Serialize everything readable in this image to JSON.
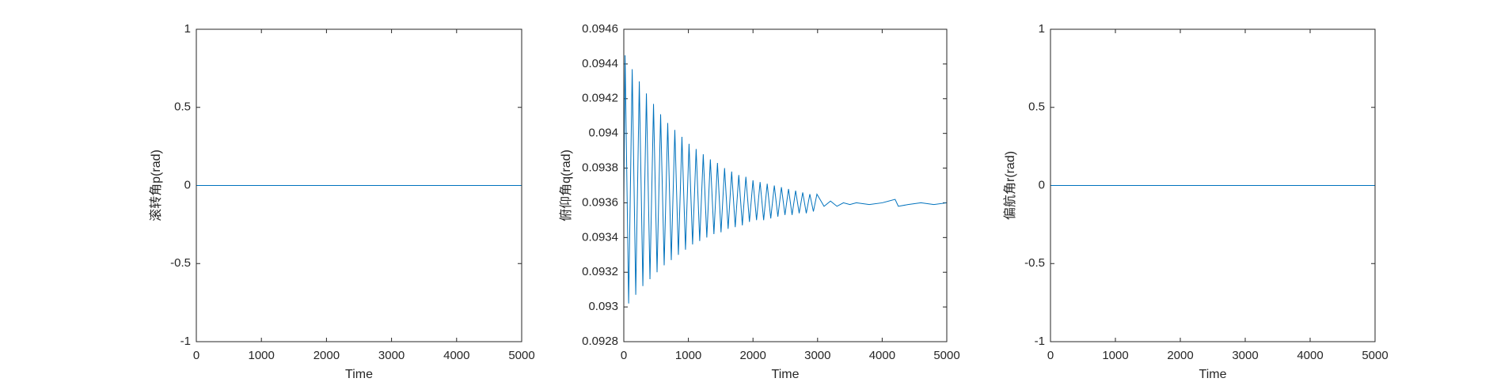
{
  "chart_data": [
    {
      "type": "line",
      "x_label": "Time",
      "y_label": "滚转角p(rad)",
      "x": [
        0,
        5000
      ],
      "values": [
        0,
        0
      ],
      "color": "#0072bd",
      "xlim": [
        0,
        5000
      ],
      "ylim": [
        -1,
        1
      ],
      "xticks": [
        0,
        1000,
        2000,
        3000,
        4000,
        5000
      ],
      "yticks": [
        -1,
        -0.5,
        0,
        0.5,
        1
      ]
    },
    {
      "type": "line",
      "x_label": "Time",
      "y_label": "俯仰角q(rad)",
      "x": [
        0,
        20,
        75,
        130,
        185,
        240,
        295,
        350,
        405,
        460,
        515,
        570,
        625,
        680,
        735,
        790,
        845,
        900,
        955,
        1010,
        1065,
        1120,
        1175,
        1230,
        1285,
        1340,
        1395,
        1450,
        1505,
        1560,
        1615,
        1670,
        1725,
        1780,
        1835,
        1890,
        1945,
        2000,
        2055,
        2110,
        2165,
        2220,
        2275,
        2330,
        2385,
        2440,
        2495,
        2550,
        2605,
        2660,
        2715,
        2770,
        2825,
        2880,
        2935,
        2990,
        3100,
        3200,
        3300,
        3400,
        3500,
        3600,
        3800,
        4000,
        4200,
        4250,
        4400,
        4600,
        4800,
        5000
      ],
      "values": [
        0.09359,
        0.09445,
        0.09302,
        0.09437,
        0.09307,
        0.0943,
        0.09312,
        0.09423,
        0.09316,
        0.09417,
        0.0932,
        0.09411,
        0.09324,
        0.09406,
        0.09327,
        0.09402,
        0.0933,
        0.09398,
        0.09333,
        0.09394,
        0.09336,
        0.09391,
        0.09338,
        0.09388,
        0.0934,
        0.09385,
        0.09342,
        0.09383,
        0.09343,
        0.0938,
        0.09345,
        0.09378,
        0.09346,
        0.09376,
        0.09347,
        0.09375,
        0.09349,
        0.09373,
        0.0935,
        0.09372,
        0.0935,
        0.09371,
        0.09351,
        0.0937,
        0.09352,
        0.09369,
        0.09353,
        0.09368,
        0.09353,
        0.09367,
        0.09354,
        0.09366,
        0.09354,
        0.09365,
        0.09355,
        0.09365,
        0.09358,
        0.09361,
        0.09358,
        0.0936,
        0.09359,
        0.0936,
        0.09359,
        0.0936,
        0.09362,
        0.09358,
        0.09359,
        0.0936,
        0.09359,
        0.0936
      ],
      "color": "#0072bd",
      "xlim": [
        0,
        5000
      ],
      "ylim": [
        0.0928,
        0.0946
      ],
      "xticks": [
        0,
        1000,
        2000,
        3000,
        4000,
        5000
      ],
      "yticks": [
        0.0928,
        0.093,
        0.0932,
        0.0934,
        0.0936,
        0.0938,
        0.094,
        0.0942,
        0.0944,
        0.0946
      ]
    },
    {
      "type": "line",
      "x_label": "Time",
      "y_label": "偏航角r(rad)",
      "x": [
        0,
        5000
      ],
      "values": [
        0,
        0
      ],
      "color": "#0072bd",
      "xlim": [
        0,
        5000
      ],
      "ylim": [
        -1,
        1
      ],
      "xticks": [
        0,
        1000,
        2000,
        3000,
        4000,
        5000
      ],
      "yticks": [
        -1,
        -0.5,
        0,
        0.5,
        1
      ]
    }
  ]
}
